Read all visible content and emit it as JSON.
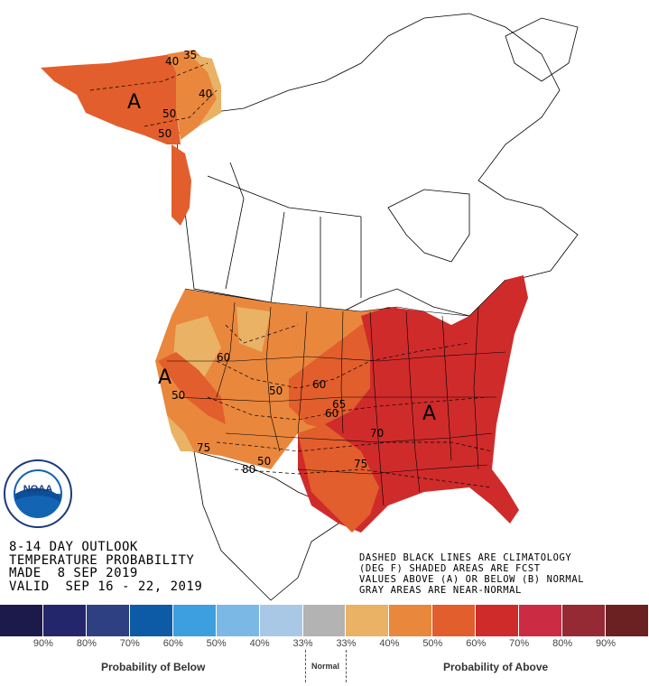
{
  "title": {
    "line1": "8-14 DAY OUTLOOK",
    "line2": "TEMPERATURE PROBABILITY",
    "line3": "MADE  8 SEP 2019",
    "line4": "VALID  SEP 16 - 22, 2019"
  },
  "notes": {
    "line1": "DASHED BLACK LINES ARE CLIMATOLOGY",
    "line2": "(DEG F) SHADED AREAS ARE FCST",
    "line3": "VALUES ABOVE (A) OR BELOW (B) NORMAL",
    "line4": "GRAY AREAS ARE NEAR-NORMAL"
  },
  "logo_text": "NOAA",
  "map_labels": {
    "alaska_above": "A",
    "west_coast_above": "A",
    "east_above": "A"
  },
  "contour_labels": [
    "35",
    "40",
    "50",
    "50",
    "40",
    "60",
    "50",
    "60",
    "65",
    "60",
    "70",
    "75",
    "50",
    "75",
    "80",
    "50"
  ],
  "legend": {
    "colors": [
      "#1c1a4a",
      "#24266c",
      "#2e3f82",
      "#0d5aa6",
      "#3d9fdf",
      "#7cb8e6",
      "#a9c8e6",
      "#b3b3b3",
      "#e9b265",
      "#e9873d",
      "#e25e2c",
      "#cf2b2b",
      "#cc2c43",
      "#962a34",
      "#6b2022"
    ],
    "below_labels": [
      "90%",
      "80%",
      "70%",
      "60%",
      "50%",
      "40%",
      "33%"
    ],
    "above_labels": [
      "33%",
      "40%",
      "50%",
      "60%",
      "70%",
      "80%",
      "90%"
    ],
    "below_title": "Probability of Below",
    "normal_title": "Normal",
    "above_title": "Probability of Above"
  }
}
